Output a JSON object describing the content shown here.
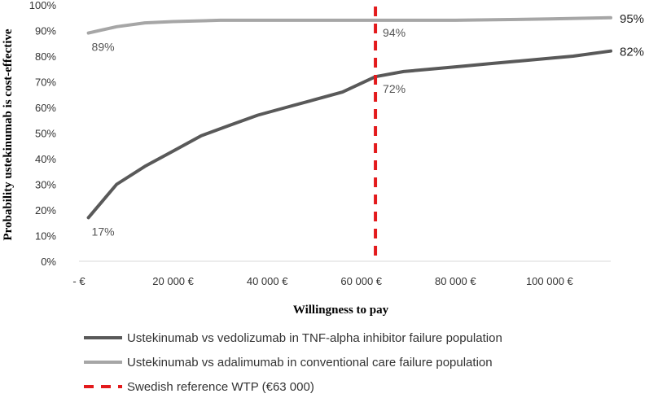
{
  "chart_data": {
    "type": "line",
    "title": "",
    "xlabel": "Willingness to pay",
    "ylabel": "Probability ustekinumab is cost-effective",
    "xlim": [
      0,
      113000
    ],
    "ylim": [
      0,
      100
    ],
    "x_ticks": [
      {
        "value": 0,
        "label": "- €"
      },
      {
        "value": 20000,
        "label": "20 000 €"
      },
      {
        "value": 40000,
        "label": "40 000 €"
      },
      {
        "value": 60000,
        "label": "60 000 €"
      },
      {
        "value": 80000,
        "label": "80 000 €"
      },
      {
        "value": 100000,
        "label": "100 000 €"
      }
    ],
    "y_ticks": [
      {
        "value": 0,
        "label": "0%"
      },
      {
        "value": 10,
        "label": "10%"
      },
      {
        "value": 20,
        "label": "20%"
      },
      {
        "value": 30,
        "label": "30%"
      },
      {
        "value": 40,
        "label": "40%"
      },
      {
        "value": 50,
        "label": "50%"
      },
      {
        "value": 60,
        "label": "60%"
      },
      {
        "value": 70,
        "label": "70%"
      },
      {
        "value": 80,
        "label": "80%"
      },
      {
        "value": 90,
        "label": "90%"
      },
      {
        "value": 100,
        "label": "100%"
      }
    ],
    "grid": false,
    "legend_position": "bottom",
    "series": [
      {
        "name": "Ustekinumab vs vedolizumab in TNF-alpha inhibitor failure population",
        "color": "#595959",
        "x": [
          2000,
          8000,
          14000,
          20000,
          26000,
          32000,
          38000,
          44000,
          50000,
          56000,
          63000,
          69000,
          75000,
          81000,
          87000,
          93000,
          99000,
          105000,
          113000
        ],
        "y": [
          17,
          30,
          37,
          43,
          49,
          53,
          57,
          60,
          63,
          66,
          72,
          74,
          75,
          76,
          77,
          78,
          79,
          80,
          82
        ]
      },
      {
        "name": "Ustekinumab vs adalimumab in conventional care failure population",
        "color": "#a6a6a6",
        "x": [
          2000,
          8000,
          14000,
          20000,
          30000,
          40000,
          50000,
          63000,
          80000,
          100000,
          113000
        ],
        "y": [
          89,
          91.5,
          93,
          93.5,
          94,
          94,
          94,
          94,
          94,
          94.5,
          95
        ]
      }
    ],
    "reference_line": {
      "name": "Swedish reference WTP (€63 000)",
      "x": 63000,
      "color": "#e31a1c"
    },
    "annotations": [
      {
        "text": "89%",
        "series": 1,
        "x": 2000,
        "y": 89
      },
      {
        "text": "94%",
        "series": 1,
        "x": 63000,
        "y": 94
      },
      {
        "text": "95%",
        "series": 1,
        "x": 113000,
        "y": 95
      },
      {
        "text": "17%",
        "series": 0,
        "x": 2000,
        "y": 17
      },
      {
        "text": "72%",
        "series": 0,
        "x": 63000,
        "y": 72
      },
      {
        "text": "82%",
        "series": 0,
        "x": 113000,
        "y": 82
      }
    ]
  }
}
